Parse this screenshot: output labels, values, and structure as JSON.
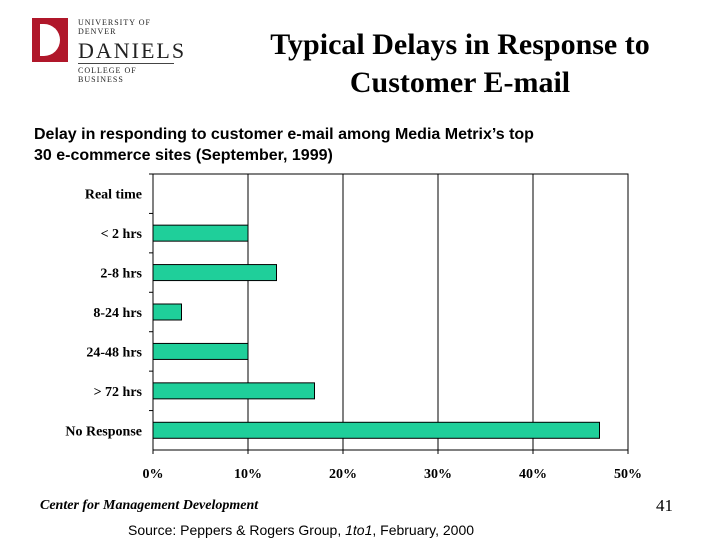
{
  "logo": {
    "university": "UNIVERSITY OF DENVER",
    "name": "DANIELS",
    "college": "COLLEGE OF BUSINESS"
  },
  "title_line1": "Typical Delays in Response to",
  "title_line2": "Customer E-mail",
  "subtitle_line1": "Delay in responding to customer e-mail among Media Metrix’s top",
  "subtitle_line2": "30 e-commerce sites (September, 1999)",
  "colors": {
    "bar": "#1fcf9a",
    "bar_stroke": "#000000"
  },
  "chart_data": {
    "type": "bar",
    "orientation": "horizontal",
    "categories": [
      "Real time",
      "< 2 hrs",
      "2-8 hrs",
      "8-24 hrs",
      "24-48 hrs",
      "> 72 hrs",
      "No Response"
    ],
    "values": [
      0,
      10,
      13,
      3,
      10,
      17,
      47
    ],
    "unit": "%",
    "xlim": [
      0,
      50
    ],
    "xticks": [
      "0%",
      "10%",
      "20%",
      "30%",
      "40%",
      "50%"
    ],
    "grid": true,
    "title": "",
    "xlabel": "",
    "ylabel": ""
  },
  "footer": {
    "org": "Center for Management Development",
    "page": "41",
    "source_prefix": "Source: Peppers & Rogers Group, ",
    "source_italic": "1to1",
    "source_suffix": ", February, 2000"
  }
}
